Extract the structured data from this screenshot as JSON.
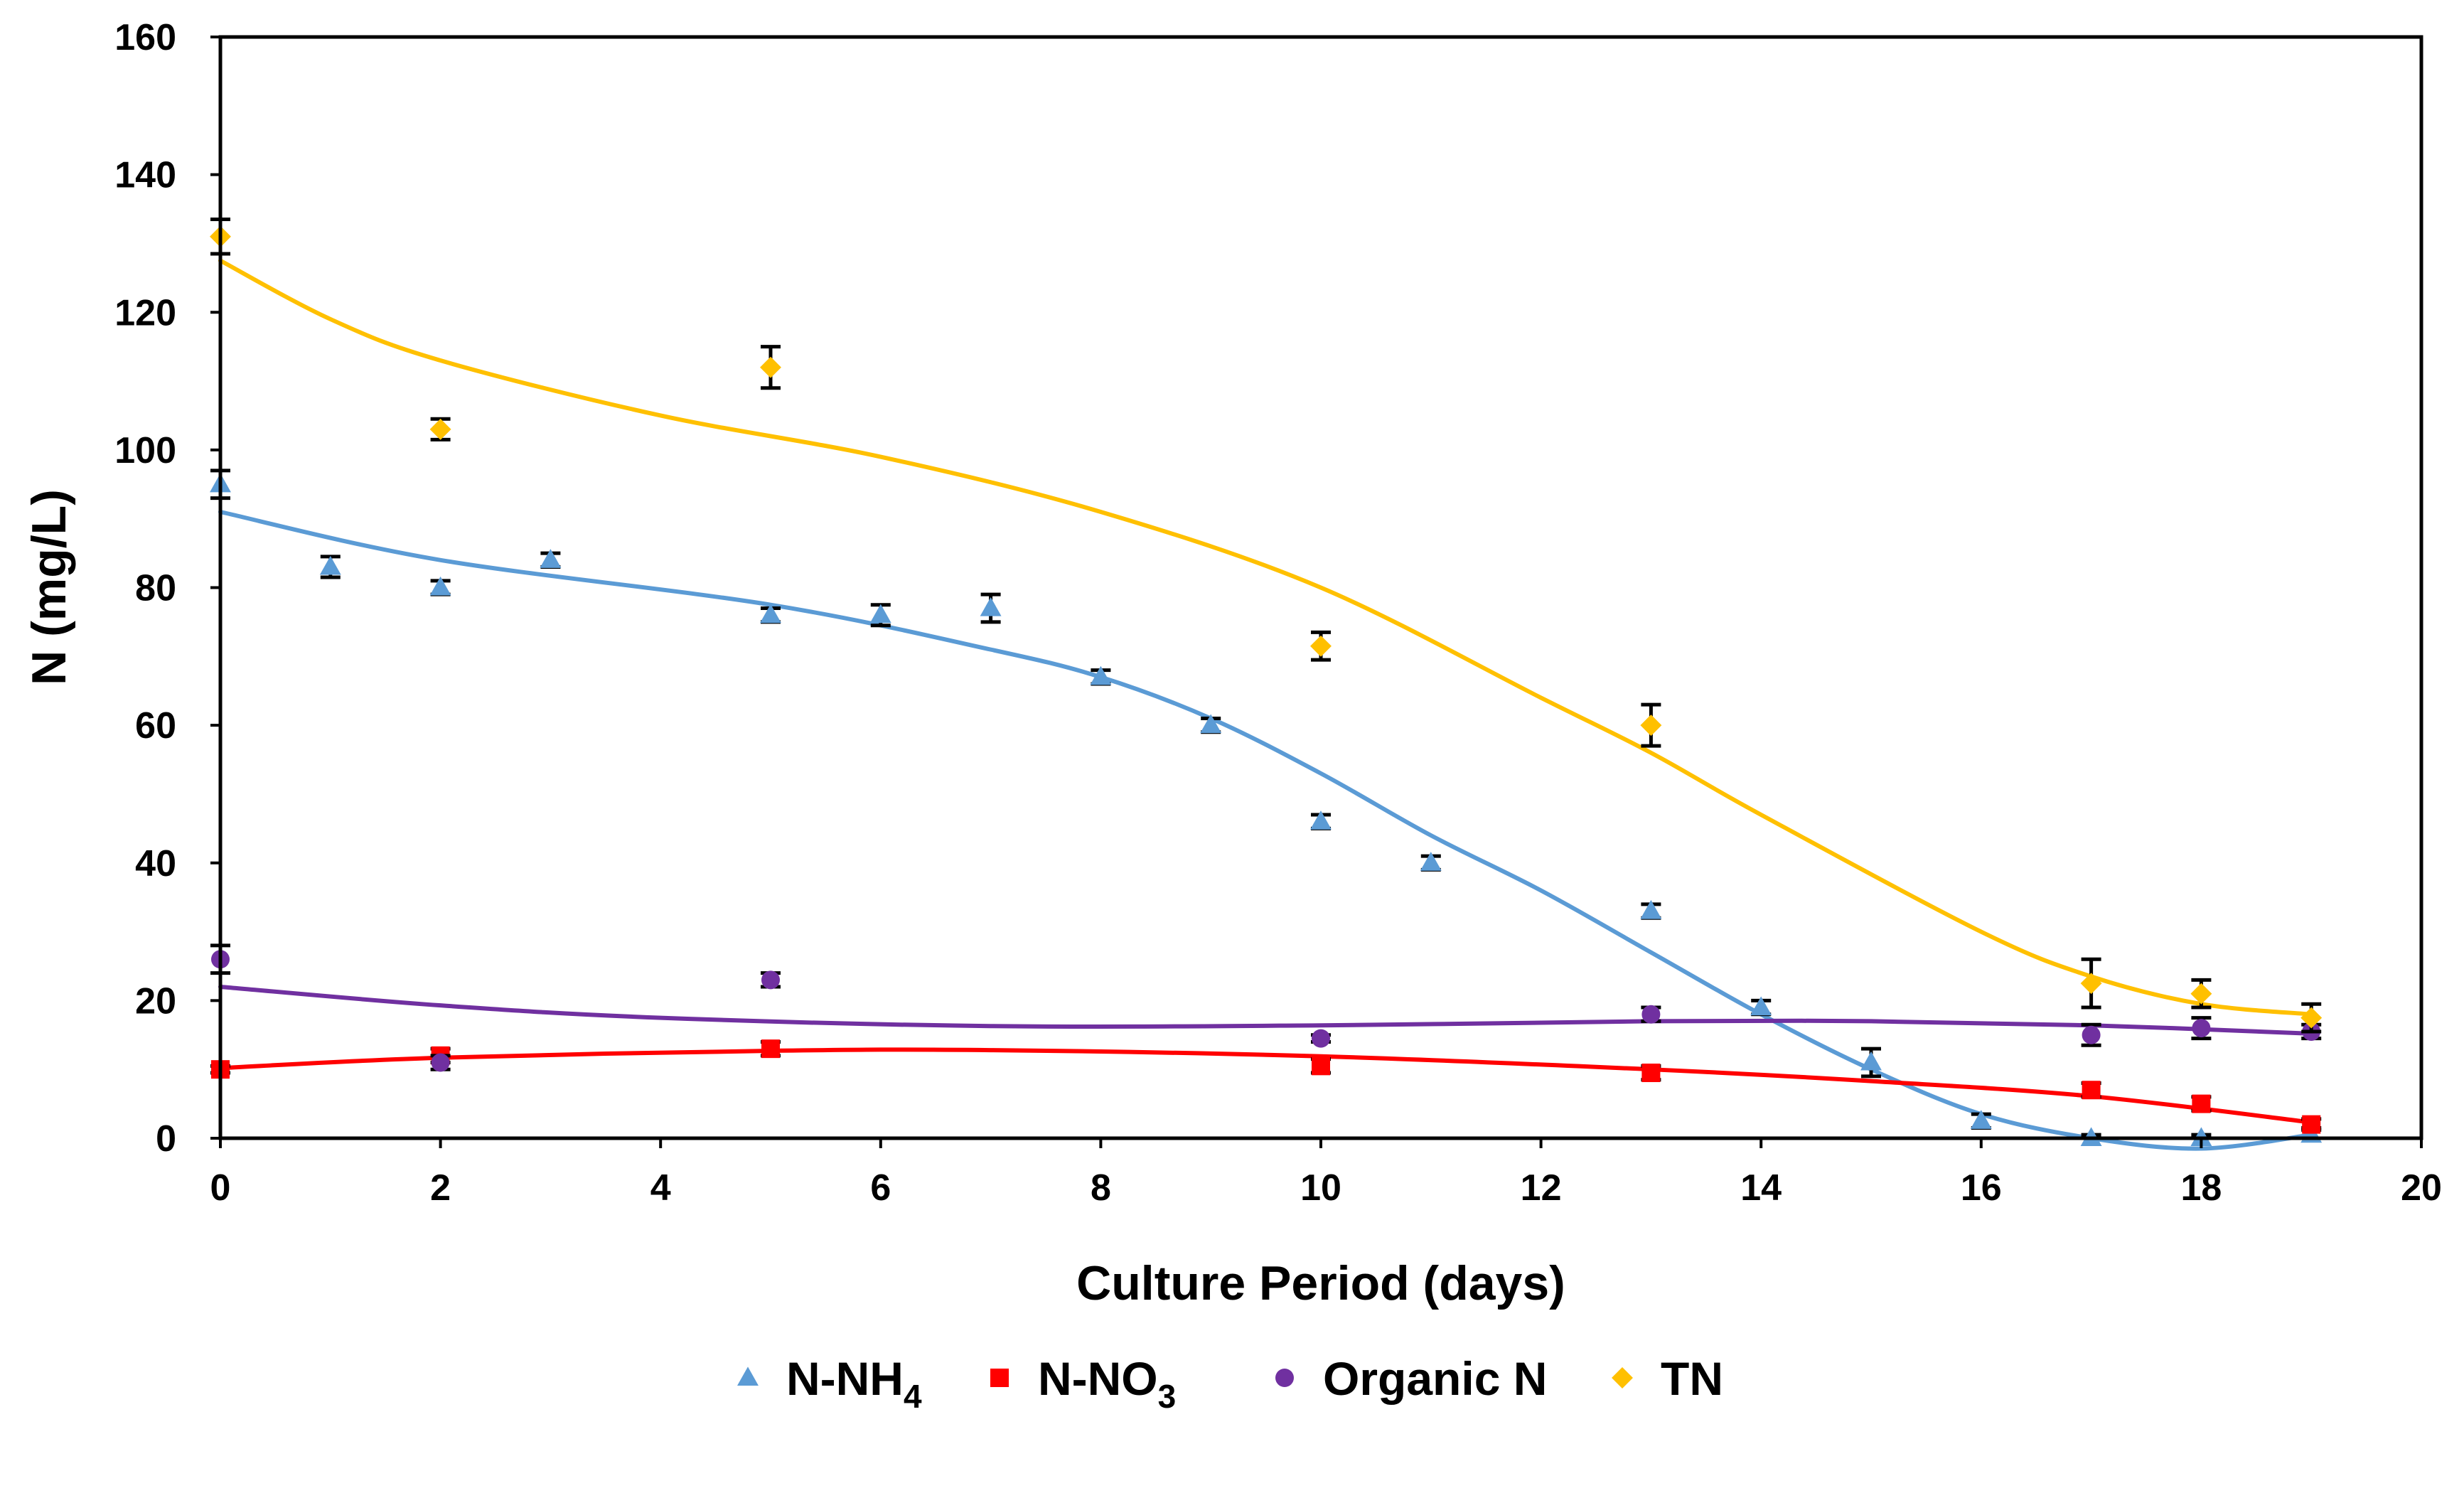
{
  "chart_data": {
    "type": "scatter",
    "title": "",
    "xlabel": "Culture Period (days)",
    "ylabel": "N  (mg/L)",
    "xlim": [
      0,
      20
    ],
    "ylim": [
      0,
      160
    ],
    "xticks": [
      0,
      2,
      4,
      6,
      8,
      10,
      12,
      14,
      16,
      18,
      20
    ],
    "yticks": [
      0,
      20,
      40,
      60,
      80,
      100,
      120,
      140,
      160
    ],
    "grid": false,
    "legend_position": "bottom",
    "series": [
      {
        "name": "N-NH4",
        "legend_main": "N-NH",
        "legend_sub": "4",
        "marker": "triangle",
        "color": "#5B9BD5",
        "x": [
          0,
          1,
          2,
          3,
          5,
          6,
          7,
          8,
          9,
          10,
          11,
          13,
          14,
          15,
          16,
          17,
          18,
          19
        ],
        "y": [
          95,
          83,
          80,
          84,
          76,
          76,
          77,
          67,
          60,
          46,
          40,
          33,
          19,
          11,
          2.5,
          0,
          0,
          0.5
        ],
        "err": [
          2,
          1.5,
          1,
          1,
          1,
          1.5,
          2,
          1,
          1,
          1,
          1,
          1,
          1,
          2,
          1,
          0.5,
          0.5,
          1
        ],
        "trend": [
          [
            0,
            91
          ],
          [
            2,
            84
          ],
          [
            5,
            77.5
          ],
          [
            7,
            71
          ],
          [
            8,
            67
          ],
          [
            9,
            61
          ],
          [
            10,
            53
          ],
          [
            11,
            44
          ],
          [
            12,
            36
          ],
          [
            13,
            27
          ],
          [
            14,
            18
          ],
          [
            15,
            10
          ],
          [
            16,
            3.5
          ],
          [
            17,
            0
          ],
          [
            18,
            -1.5
          ],
          [
            19,
            0.5
          ]
        ]
      },
      {
        "name": "N-NO3",
        "legend_main": "N-NO",
        "legend_sub": "3",
        "marker": "square",
        "color": "#FF0000",
        "x": [
          0,
          2,
          5,
          10,
          13,
          17,
          18,
          19
        ],
        "y": [
          10,
          12,
          13,
          10.5,
          9.5,
          7,
          5,
          2
        ],
        "err": [
          0.5,
          1,
          1,
          1,
          1,
          1,
          1,
          0.8
        ],
        "trend": [
          [
            0,
            10.2
          ],
          [
            2,
            11.7
          ],
          [
            5,
            12.7
          ],
          [
            7,
            12.8
          ],
          [
            10,
            11.9
          ],
          [
            13,
            10
          ],
          [
            15,
            8.3
          ],
          [
            17,
            6.1
          ],
          [
            19,
            2.3
          ]
        ]
      },
      {
        "name": "Organic N",
        "legend_main": "Organic N",
        "legend_sub": "",
        "marker": "circle",
        "color": "#7030A0",
        "x": [
          0,
          2,
          5,
          10,
          13,
          17,
          18,
          19
        ],
        "y": [
          26,
          11,
          23,
          14.5,
          18,
          15,
          16,
          15.5
        ],
        "err": [
          2,
          1,
          1,
          0.5,
          1,
          1.5,
          1.5,
          1
        ],
        "trend": [
          [
            0,
            22
          ],
          [
            2,
            19.3
          ],
          [
            4,
            17.5
          ],
          [
            7,
            16.3
          ],
          [
            10,
            16.4
          ],
          [
            13,
            17
          ],
          [
            15,
            17
          ],
          [
            17,
            16.4
          ],
          [
            19,
            15.2
          ]
        ]
      },
      {
        "name": "TN",
        "legend_main": "TN",
        "legend_sub": "",
        "marker": "diamond",
        "color": "#FFC000",
        "x": [
          0,
          2,
          5,
          10,
          13,
          17,
          18,
          19
        ],
        "y": [
          131,
          103,
          112,
          71.5,
          60,
          22.5,
          21,
          17.5
        ],
        "err": [
          2.5,
          1.5,
          3,
          2,
          3,
          3.5,
          2,
          2
        ],
        "trend": [
          [
            0,
            127.5
          ],
          [
            1,
            119
          ],
          [
            2,
            113
          ],
          [
            4,
            105
          ],
          [
            6,
            99
          ],
          [
            8,
            91
          ],
          [
            10,
            80
          ],
          [
            12,
            64
          ],
          [
            13,
            56
          ],
          [
            14,
            47
          ],
          [
            16,
            30
          ],
          [
            17,
            23.5
          ],
          [
            18,
            19.5
          ],
          [
            19,
            18
          ]
        ]
      }
    ]
  }
}
